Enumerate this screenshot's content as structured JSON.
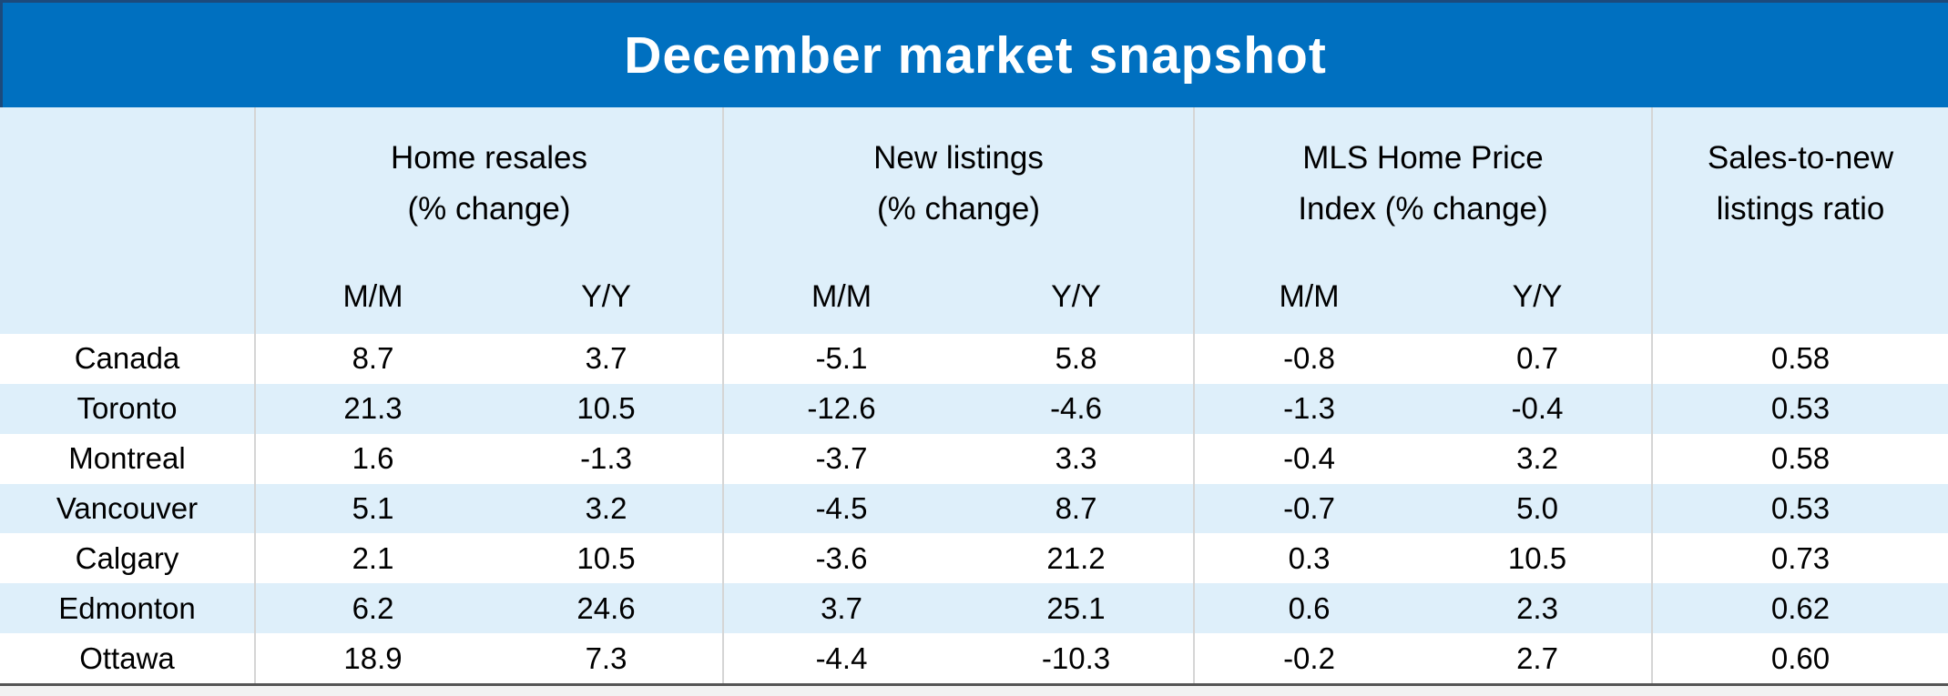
{
  "page": {
    "title": "December market snapshot"
  },
  "colors": {
    "title_band_blue": "#0070C0",
    "band_border_navy": "#1c4a7c",
    "header_and_stripe_fill": "#deeffa",
    "row_white": "#ffffff",
    "column_divider": "#d5d5d5",
    "bottom_rule": "#555555",
    "page_background": "#f2f2f2",
    "title_text": "#ffffff",
    "body_text": "#000000"
  },
  "chart_data": {
    "type": "table",
    "title": "December market snapshot",
    "column_groups": [
      {
        "line1": "Home resales",
        "line2": "(% change)",
        "subcolumns": [
          "M/M",
          "Y/Y"
        ]
      },
      {
        "line1": "New listings",
        "line2": "(% change)",
        "subcolumns": [
          "M/M",
          "Y/Y"
        ]
      },
      {
        "line1": "MLS Home Price",
        "line2": "Index (% change)",
        "subcolumns": [
          "M/M",
          "Y/Y"
        ]
      },
      {
        "line1": "Sales-to-new",
        "line2": "listings ratio",
        "subcolumns": []
      }
    ],
    "rows": [
      {
        "label": "Canada",
        "values": [
          "8.7",
          "3.7",
          "-5.1",
          "5.8",
          "-0.8",
          "0.7",
          "0.58"
        ]
      },
      {
        "label": "Toronto",
        "values": [
          "21.3",
          "10.5",
          "-12.6",
          "-4.6",
          "-1.3",
          "-0.4",
          "0.53"
        ]
      },
      {
        "label": "Montreal",
        "values": [
          "1.6",
          "-1.3",
          "-3.7",
          "3.3",
          "-0.4",
          "3.2",
          "0.58"
        ]
      },
      {
        "label": "Vancouver",
        "values": [
          "5.1",
          "3.2",
          "-4.5",
          "8.7",
          "-0.7",
          "5.0",
          "0.53"
        ]
      },
      {
        "label": "Calgary",
        "values": [
          "2.1",
          "10.5",
          "-3.6",
          "21.2",
          "0.3",
          "10.5",
          "0.73"
        ]
      },
      {
        "label": "Edmonton",
        "values": [
          "6.2",
          "24.6",
          "3.7",
          "25.1",
          "0.6",
          "2.3",
          "0.62"
        ]
      },
      {
        "label": "Ottawa",
        "values": [
          "18.9",
          "7.3",
          "-4.4",
          "-10.3",
          "-0.2",
          "2.7",
          "0.60"
        ]
      }
    ]
  }
}
